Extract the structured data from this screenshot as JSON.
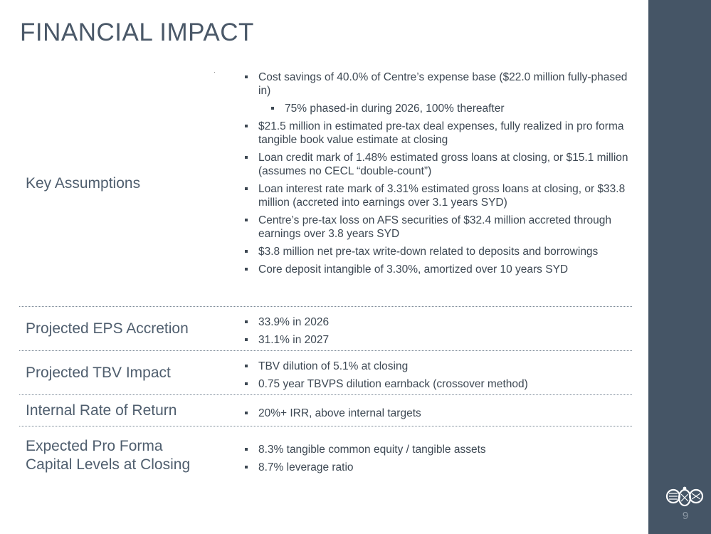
{
  "title": "FINANCIAL IMPACT",
  "rows": [
    {
      "label": "Key Assumptions",
      "bullets": [
        "Cost savings of 40.0% of Centre’s expense base ($22.0 million fully-phased in)",
        "75% phased-in during 2026, 100% thereafter",
        "$21.5 million in estimated pre-tax deal expenses, fully realized in pro forma tangible book value estimate at closing",
        "Loan credit mark of 1.48% estimated gross loans at closing, or $15.1 million (assumes no CECL “double-count”)",
        "Loan interest rate mark of 3.31% estimated gross loans at closing, or $33.8 million (accreted into earnings over 3.1 years SYD)",
        "Centre’s pre-tax loss on AFS securities of $32.4 million accreted through earnings over 3.8 years SYD",
        "$3.8 million net pre-tax write-down related to deposits and borrowings",
        "Core deposit intangible of 3.30%, amortized over 10 years SYD"
      ]
    },
    {
      "label": "Projected EPS Accretion",
      "bullets": [
        "33.9% in 2026",
        "31.1% in 2027"
      ]
    },
    {
      "label": "Projected TBV Impact",
      "bullets": [
        "TBV dilution of 5.1% at closing",
        "0.75 year TBVPS dilution earnback (crossover method)"
      ]
    },
    {
      "label": "Internal Rate of Return",
      "bullets": [
        "20%+ IRR, above internal targets"
      ]
    },
    {
      "label_line1": "Expected Pro Forma",
      "label_line2": "Capital Levels at Closing",
      "bullets": [
        "8.3% tangible common equity / tangible assets",
        "8.7% leverage ratio"
      ]
    }
  ],
  "page_number": "9",
  "colors": {
    "sidebar": "#455566",
    "text": "#3d4853",
    "title": "#4a5868"
  }
}
